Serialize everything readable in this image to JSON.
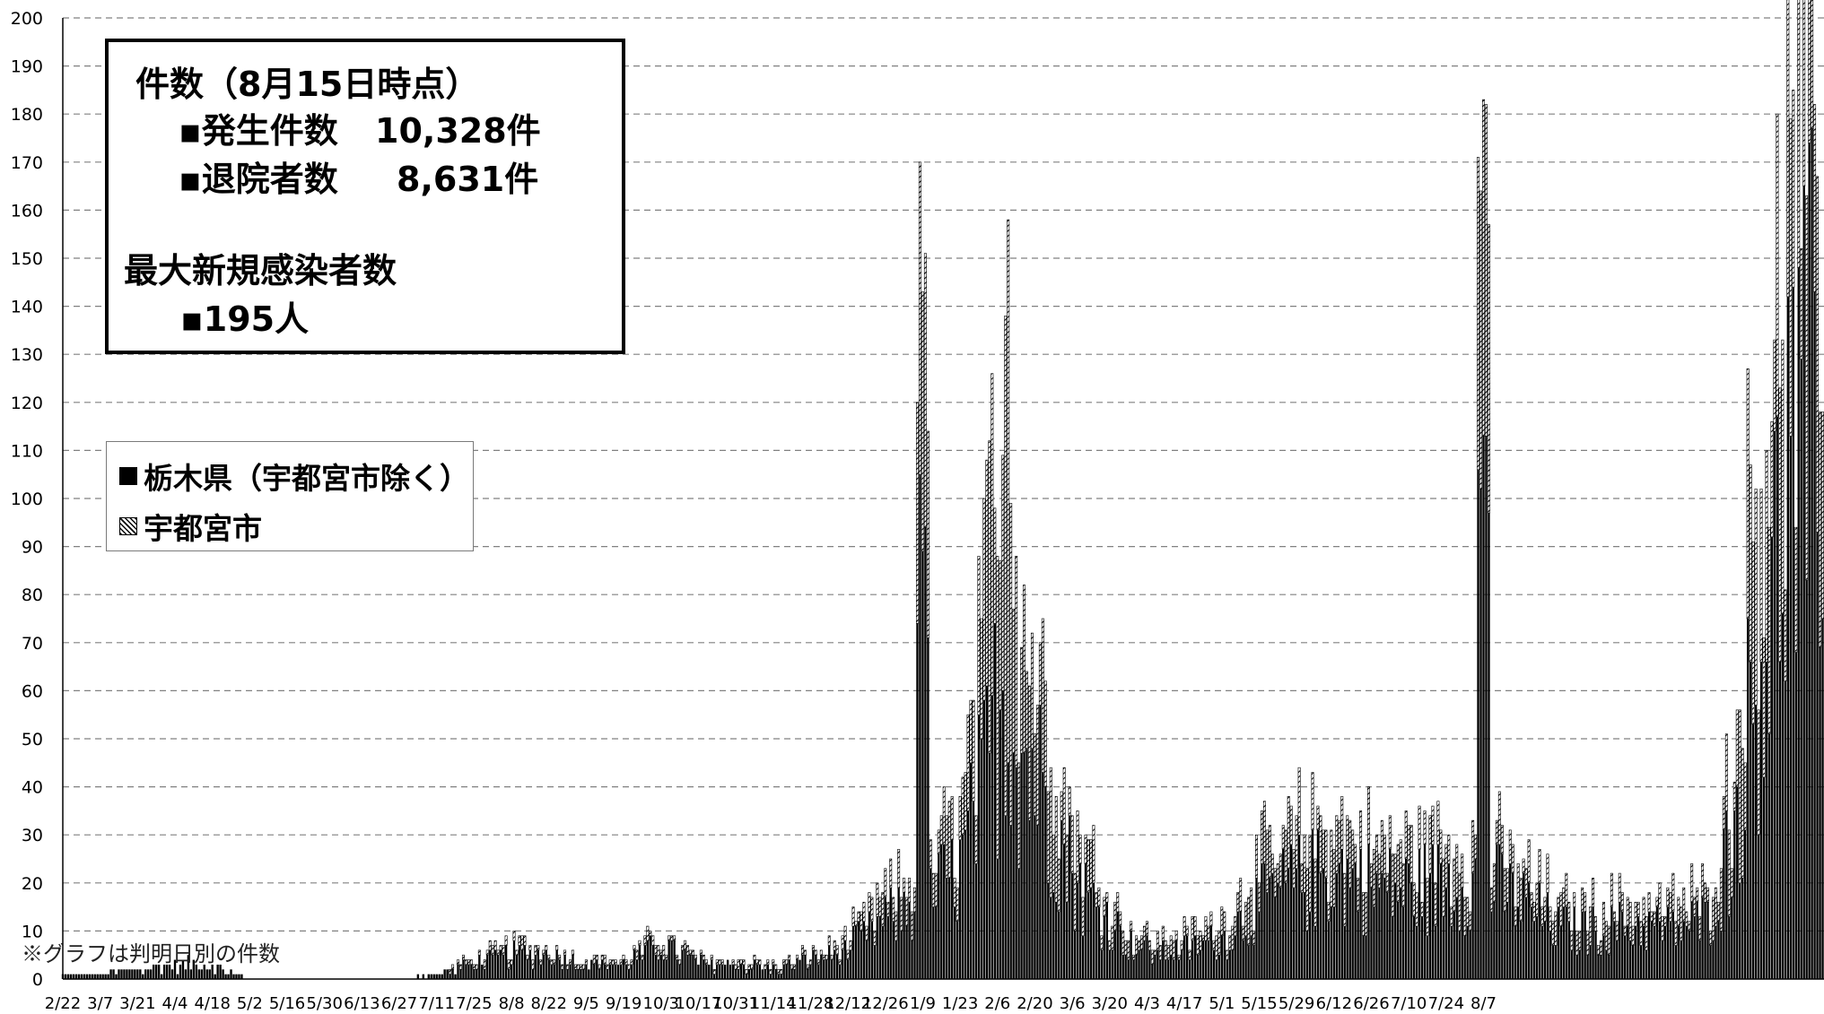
{
  "info_box": {
    "heading": "件数（8月15日時点）",
    "cases_label": "▪発生件数",
    "cases_value": "10,328件",
    "discharged_label": "▪退院者数",
    "discharged_value": "8,631件",
    "max_heading": "最大新規感染者数",
    "max_value": "▪195人"
  },
  "legend": {
    "prefecture_label": "栃木県（宇都宮市除く）",
    "utsunomiya_label": "宇都宮市"
  },
  "footnote": "※グラフは判明日別の件数",
  "colors": {
    "prefecture": "#000000",
    "utsunomiya_hatch": "#000000",
    "grid": "#808080"
  },
  "chart_data": {
    "type": "bar",
    "stacked": true,
    "ylim": [
      0,
      200
    ],
    "ytick_step": 10,
    "grid": "horizontal dashed",
    "legend_position": "left",
    "x_tick_labels": [
      "2/22",
      "3/7",
      "3/21",
      "4/4",
      "4/18",
      "5/2",
      "5/16",
      "5/30",
      "6/13",
      "6/27",
      "7/11",
      "7/25",
      "8/8",
      "8/22",
      "9/5",
      "9/19",
      "10/3",
      "10/17",
      "10/31",
      "11/14",
      "11/28",
      "12/12",
      "12/26",
      "1/9",
      "1/23",
      "2/6",
      "2/20",
      "3/6",
      "3/20",
      "4/3",
      "4/17",
      "5/1",
      "5/15",
      "5/29",
      "6/12",
      "6/26",
      "7/10",
      "7/24",
      "8/7"
    ],
    "series": [
      {
        "name": "栃木県（宇都宮市除く）",
        "style": "solid",
        "anchors": [
          [
            0,
            1
          ],
          [
            14,
            1
          ],
          [
            30,
            2
          ],
          [
            42,
            3
          ],
          [
            55,
            3
          ],
          [
            70,
            0
          ],
          [
            100,
            0
          ],
          [
            124,
            0
          ],
          [
            140,
            1
          ],
          [
            154,
            3
          ],
          [
            168,
            5
          ],
          [
            182,
            5
          ],
          [
            196,
            3
          ],
          [
            210,
            3
          ],
          [
            224,
            7
          ],
          [
            238,
            3
          ],
          [
            252,
            3
          ],
          [
            266,
            2
          ],
          [
            280,
            4
          ],
          [
            294,
            6
          ],
          [
            308,
            12
          ],
          [
            322,
            16
          ],
          [
            336,
            22
          ],
          [
            345,
            40
          ],
          [
            350,
            55
          ],
          [
            354,
            60
          ],
          [
            357,
            50
          ],
          [
            362,
            45
          ],
          [
            368,
            38
          ],
          [
            375,
            26
          ],
          [
            382,
            18
          ],
          [
            392,
            12
          ],
          [
            400,
            7
          ],
          [
            410,
            5
          ],
          [
            420,
            6
          ],
          [
            434,
            8
          ],
          [
            448,
            15
          ],
          [
            462,
            20
          ],
          [
            476,
            22
          ],
          [
            490,
            19
          ],
          [
            504,
            18
          ],
          [
            518,
            20
          ],
          [
            532,
            20
          ],
          [
            546,
            16
          ],
          [
            560,
            10
          ],
          [
            574,
            10
          ],
          [
            588,
            11
          ],
          [
            602,
            10
          ],
          [
            616,
            12
          ],
          [
            626,
            30
          ],
          [
            632,
            55
          ],
          [
            638,
            75
          ],
          [
            642,
            85
          ],
          [
            646,
            110
          ],
          [
            650,
            100
          ],
          [
            654,
            115
          ],
          [
            659,
            120
          ]
        ]
      },
      {
        "name": "宇都宮市",
        "style": "hatched",
        "anchors": [
          [
            0,
            0
          ],
          [
            14,
            0
          ],
          [
            30,
            0
          ],
          [
            42,
            0
          ],
          [
            55,
            0
          ],
          [
            70,
            0
          ],
          [
            100,
            0
          ],
          [
            124,
            0
          ],
          [
            140,
            0
          ],
          [
            154,
            1
          ],
          [
            168,
            2
          ],
          [
            182,
            1
          ],
          [
            196,
            1
          ],
          [
            210,
            1
          ],
          [
            224,
            2
          ],
          [
            238,
            1
          ],
          [
            252,
            1
          ],
          [
            266,
            1
          ],
          [
            280,
            1
          ],
          [
            294,
            2
          ],
          [
            308,
            5
          ],
          [
            322,
            6
          ],
          [
            336,
            12
          ],
          [
            345,
            30
          ],
          [
            350,
            65
          ],
          [
            354,
            80
          ],
          [
            357,
            35
          ],
          [
            362,
            25
          ],
          [
            368,
            20
          ],
          [
            375,
            12
          ],
          [
            382,
            10
          ],
          [
            392,
            5
          ],
          [
            400,
            3
          ],
          [
            410,
            3
          ],
          [
            420,
            3
          ],
          [
            434,
            4
          ],
          [
            448,
            8
          ],
          [
            462,
            10
          ],
          [
            476,
            10
          ],
          [
            490,
            8
          ],
          [
            504,
            9
          ],
          [
            518,
            8
          ],
          [
            532,
            7
          ],
          [
            546,
            7
          ],
          [
            560,
            5
          ],
          [
            574,
            5
          ],
          [
            588,
            5
          ],
          [
            602,
            5
          ],
          [
            616,
            5
          ],
          [
            626,
            15
          ],
          [
            632,
            40
          ],
          [
            638,
            45
          ],
          [
            642,
            40
          ],
          [
            646,
            45
          ],
          [
            650,
            45
          ],
          [
            654,
            52
          ],
          [
            659,
            45
          ]
        ]
      }
    ],
    "peaks": [
      {
        "tick": "1/9",
        "values": [
          120,
          170,
          143,
          151,
          114
        ]
      },
      {
        "tick": "8/7",
        "values": [
          171,
          164,
          183,
          182,
          157
        ]
      }
    ]
  }
}
